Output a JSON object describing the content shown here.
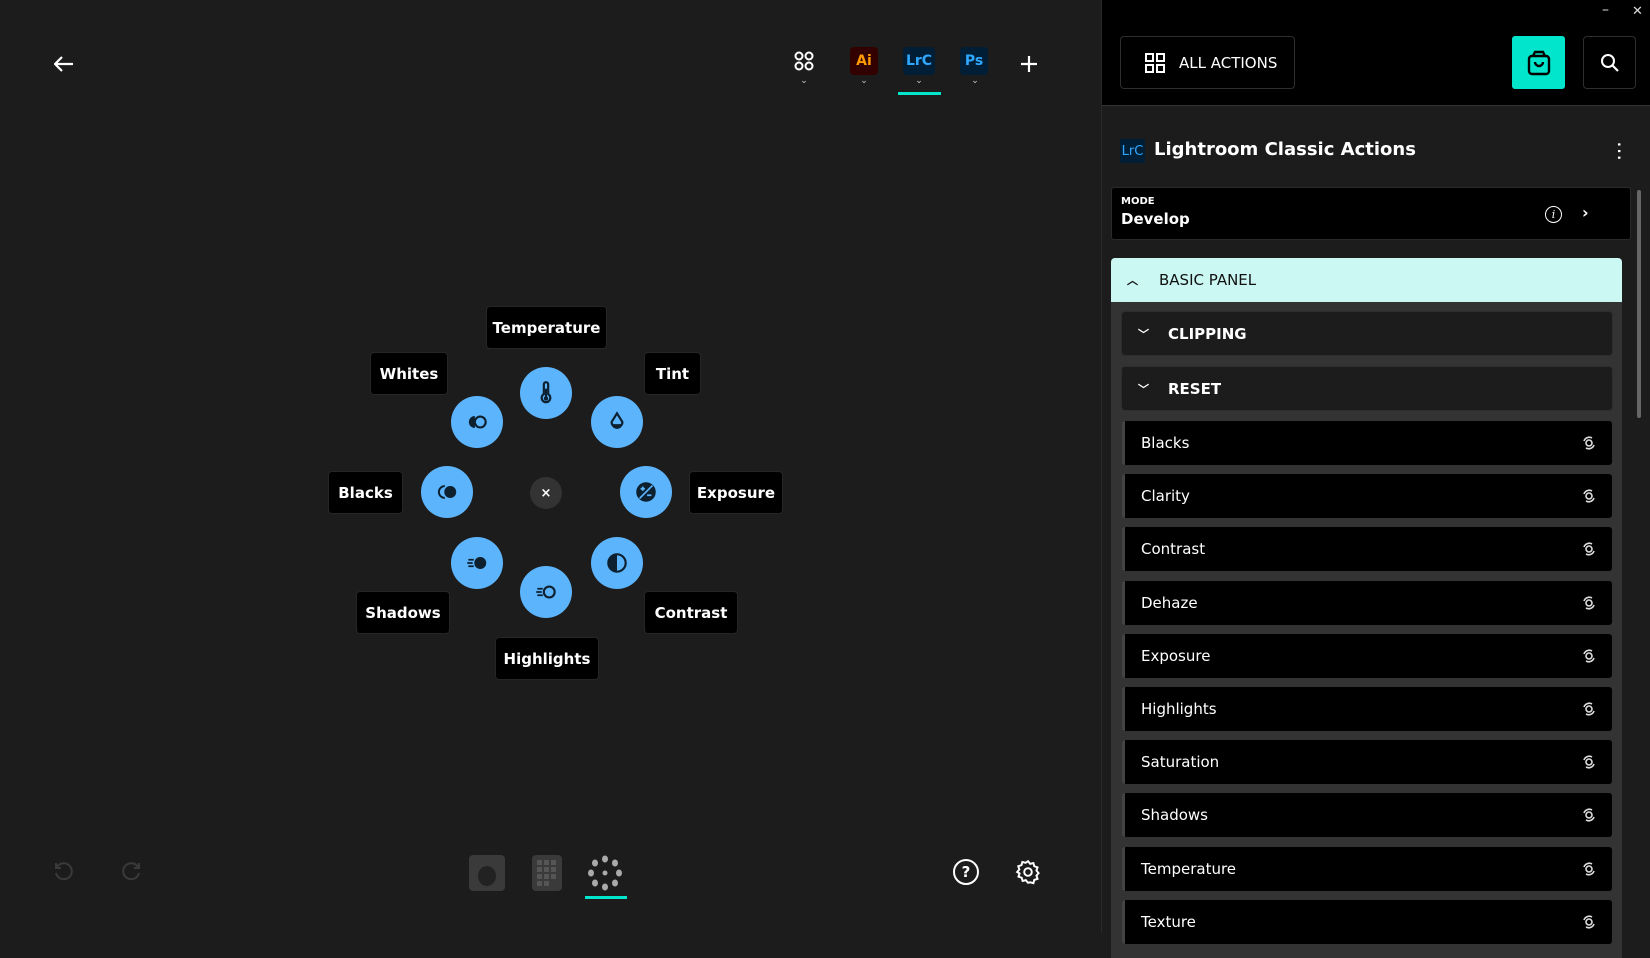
{
  "colors": {
    "accent": "#00e5cc",
    "radial_button": "#5cb4fc",
    "panel_header": "#ccf8f3"
  },
  "toolbar": {
    "back_icon": "arrow-left-icon",
    "apps": [
      {
        "label": "Ai",
        "color": "#ff9a00",
        "bg": "#330000"
      },
      {
        "label": "LrC",
        "color": "#31a8ff",
        "bg": "#001e36",
        "active": true
      },
      {
        "label": "Ps",
        "color": "#31a8ff",
        "bg": "#001e36"
      }
    ],
    "add_icon": "plus-icon"
  },
  "radial": {
    "close": "×",
    "items": [
      "Temperature",
      "Tint",
      "Exposure",
      "Contrast",
      "Highlights",
      "Shadows",
      "Blacks",
      "Whites"
    ]
  },
  "bottom": {
    "undo": "undo-icon",
    "redo": "redo-icon",
    "help": "?",
    "active_device": "radial"
  },
  "panel": {
    "all_actions": "ALL ACTIONS",
    "badge": "LrC",
    "title": "Lightroom Classic Actions",
    "mode_label": "MODE",
    "mode_value": "Develop",
    "section": "BASIC PANEL",
    "subsections": [
      "CLIPPING",
      "RESET"
    ],
    "items": [
      "Blacks",
      "Clarity",
      "Contrast",
      "Dehaze",
      "Exposure",
      "Highlights",
      "Saturation",
      "Shadows",
      "Temperature",
      "Texture"
    ]
  },
  "window": {
    "minimize": "–",
    "close": "✕"
  }
}
